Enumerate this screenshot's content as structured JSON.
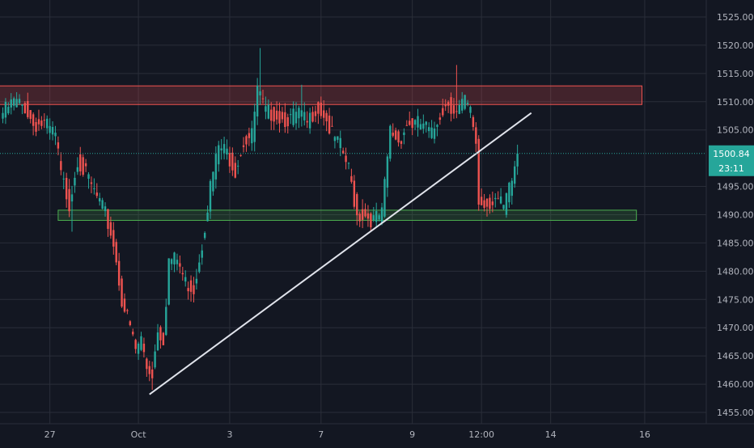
{
  "theme": {
    "background": "#131722",
    "grid": "#2a2e39",
    "up": "#26a69a",
    "down": "#ef5350",
    "trendline": "#e0e3eb",
    "resistance_zone": "#ef5350",
    "support_zone": "#4caf50",
    "price_line": "#26a69a",
    "axis_text": "#b2b5be"
  },
  "chart_data": {
    "type": "candlestick",
    "ylim": [
      1453,
      1528
    ],
    "x_axis": {
      "tick_labels": [
        "27",
        "Oct",
        "3",
        "7",
        "9",
        "12:00",
        "14",
        "16"
      ],
      "tick_bar_index": [
        17,
        49,
        82,
        115,
        148,
        173,
        198,
        232
      ]
    },
    "y_axis": {
      "tick_labels": [
        "1525.00",
        "1520.00",
        "1515.00",
        "1510.00",
        "1505.00",
        "1495.00",
        "1490.00",
        "1485.00",
        "1480.00",
        "1475.00",
        "1470.00",
        "1465.00",
        "1460.00",
        "1455.00"
      ],
      "tick_values": [
        1525,
        1520,
        1515,
        1510,
        1505,
        1495,
        1490,
        1485,
        1480,
        1475,
        1470,
        1465,
        1460,
        1455
      ]
    },
    "last_price": {
      "value": 1500.84,
      "label": "1500.84",
      "countdown": "23:11"
    },
    "resistance_zone": {
      "from_bar": 0,
      "to_bar": 231,
      "low": 1509.5,
      "high": 1512.8
    },
    "support_zone": {
      "from_bar": 20,
      "to_bar": 229,
      "low": 1489.0,
      "high": 1490.8
    },
    "trendline": {
      "x1_bar": 53,
      "y1": 1458.2,
      "x2_bar": 191,
      "y2": 1508.0
    },
    "anchors": [
      [
        0,
        1508
      ],
      [
        4,
        1510
      ],
      [
        8,
        1509
      ],
      [
        11,
        1506
      ],
      [
        15,
        1506
      ],
      [
        19,
        1504
      ],
      [
        21,
        1497
      ],
      [
        24,
        1492
      ],
      [
        27,
        1500
      ],
      [
        31,
        1496
      ],
      [
        34,
        1493
      ],
      [
        37,
        1490
      ],
      [
        40,
        1485
      ],
      [
        43,
        1475
      ],
      [
        46,
        1470
      ],
      [
        48,
        1466
      ],
      [
        50,
        1468
      ],
      [
        52,
        1463
      ],
      [
        54,
        1462
      ],
      [
        56,
        1470
      ],
      [
        58,
        1468
      ],
      [
        60,
        1482
      ],
      [
        63,
        1482
      ],
      [
        66,
        1478
      ],
      [
        69,
        1477
      ],
      [
        72,
        1485
      ],
      [
        75,
        1495
      ],
      [
        78,
        1502
      ],
      [
        81,
        1501
      ],
      [
        84,
        1498
      ],
      [
        87,
        1503
      ],
      [
        90,
        1504
      ],
      [
        92,
        1512
      ],
      [
        95,
        1508
      ],
      [
        98,
        1508
      ],
      [
        101,
        1507
      ],
      [
        104,
        1507
      ],
      [
        107,
        1508
      ],
      [
        110,
        1506
      ],
      [
        113,
        1509
      ],
      [
        116,
        1508
      ],
      [
        119,
        1504
      ],
      [
        122,
        1502
      ],
      [
        125,
        1498
      ],
      [
        128,
        1490
      ],
      [
        131,
        1490
      ],
      [
        134,
        1489
      ],
      [
        137,
        1490
      ],
      [
        140,
        1505
      ],
      [
        143,
        1503
      ],
      [
        146,
        1506
      ],
      [
        149,
        1506
      ],
      [
        152,
        1506
      ],
      [
        155,
        1504
      ],
      [
        158,
        1508
      ],
      [
        161,
        1510
      ],
      [
        164,
        1508
      ],
      [
        167,
        1510
      ],
      [
        169,
        1508
      ],
      [
        171,
        1503
      ],
      [
        172,
        1492
      ],
      [
        175,
        1492
      ],
      [
        178,
        1493
      ],
      [
        181,
        1491
      ],
      [
        184,
        1496
      ],
      [
        186,
        1500.84
      ]
    ],
    "spikes": [
      {
        "bar": 54,
        "low": 1459
      },
      {
        "bar": 93,
        "high": 1519.5
      },
      {
        "bar": 108,
        "high": 1513
      },
      {
        "bar": 164,
        "high": 1516.5
      },
      {
        "bar": 133,
        "low": 1487
      },
      {
        "bar": 25,
        "low": 1487
      }
    ]
  }
}
